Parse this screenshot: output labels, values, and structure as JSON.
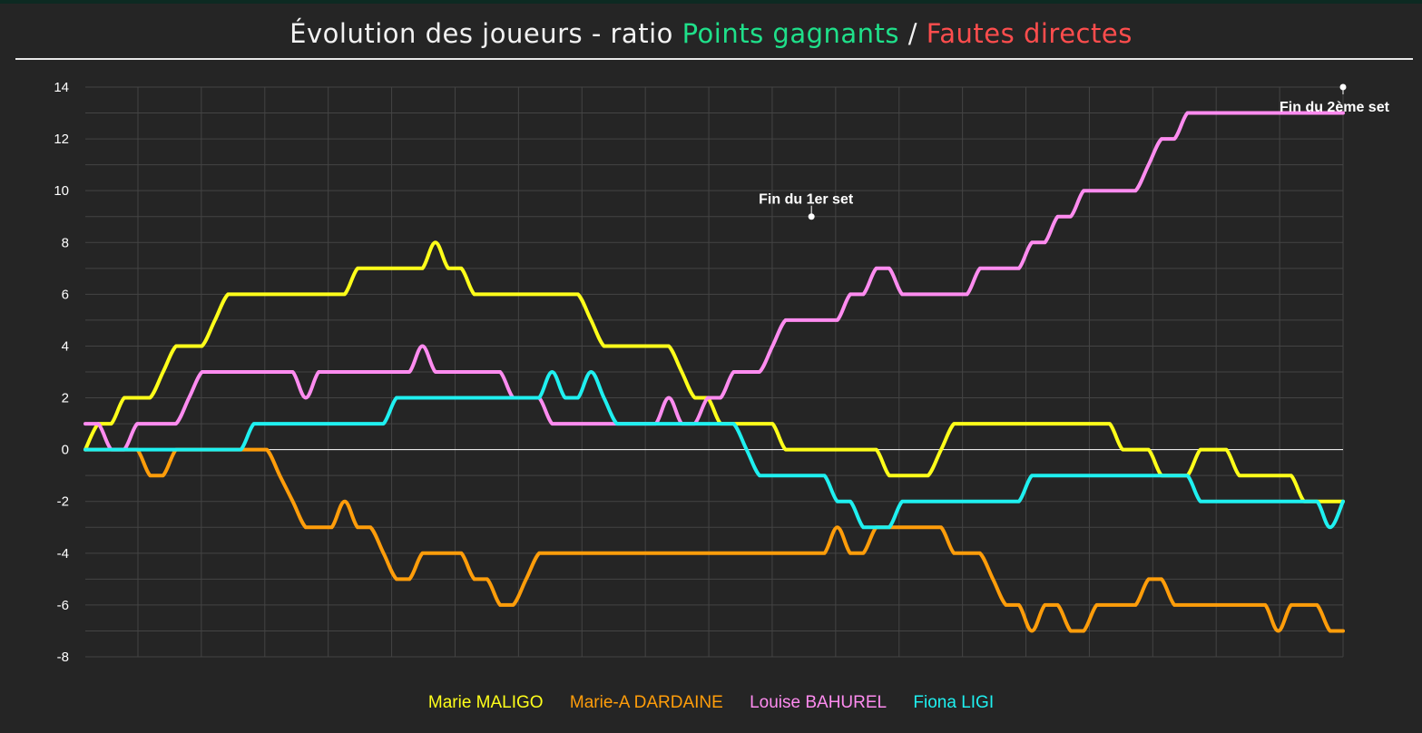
{
  "title": {
    "prefix": "Évolution des joueurs - ratio ",
    "positive": "Points gagnants",
    "separator": " / ",
    "negative": "Fautes directes",
    "positive_color": "#1fe08a",
    "negative_color": "#ff4d4d"
  },
  "chart_data": {
    "type": "line",
    "title": "Évolution des joueurs - ratio Points gagnants / Fautes directes",
    "xlabel": "",
    "ylabel": "",
    "ylim": [
      -8,
      14
    ],
    "xlim": [
      0,
      97
    ],
    "yticks": [
      14,
      12,
      10,
      8,
      6,
      4,
      2,
      0,
      -2,
      -4,
      -6,
      -8
    ],
    "grid": true,
    "legend_position": "bottom",
    "annotations": [
      {
        "text": "Fin du 1er set",
        "x": 56,
        "y": 9
      },
      {
        "text": "Fin du 2ème set",
        "x": 97,
        "y": 14
      }
    ],
    "series": [
      {
        "name": "Marie MALIGO",
        "color": "#ffff1a",
        "x": [
          0,
          1,
          2,
          3,
          4,
          5,
          6,
          7,
          8,
          9,
          10,
          11,
          12,
          13,
          14,
          15,
          16,
          17,
          18,
          19,
          20,
          21,
          22,
          23,
          24,
          25,
          26,
          27,
          28,
          29,
          30,
          31,
          32,
          33,
          34,
          35,
          36,
          37,
          38,
          39,
          40,
          41,
          42,
          43,
          44,
          45,
          46,
          47,
          48,
          49,
          50,
          51,
          52,
          53,
          54,
          55,
          56,
          57,
          58,
          59,
          60,
          61,
          62,
          63,
          64,
          65,
          66,
          67,
          68,
          69,
          70,
          71,
          72,
          73,
          74,
          75,
          76,
          77,
          78,
          79,
          80,
          81,
          82,
          83,
          84,
          85,
          86,
          87,
          88,
          89,
          90,
          91,
          92,
          93,
          94,
          95,
          96,
          97
        ],
        "y": [
          0,
          1,
          1,
          2,
          2,
          2,
          3,
          4,
          4,
          4,
          5,
          6,
          6,
          6,
          6,
          6,
          6,
          6,
          6,
          6,
          6,
          7,
          7,
          7,
          7,
          7,
          7,
          8,
          7,
          7,
          6,
          6,
          6,
          6,
          6,
          6,
          6,
          6,
          6,
          5,
          4,
          4,
          4,
          4,
          4,
          4,
          3,
          2,
          2,
          1,
          1,
          1,
          1,
          1,
          0,
          0,
          0,
          0,
          0,
          0,
          0,
          0,
          -1,
          -1,
          -1,
          -1,
          0,
          1,
          1,
          1,
          1,
          1,
          1,
          1,
          1,
          1,
          1,
          1,
          1,
          1,
          0,
          0,
          0,
          -1,
          -1,
          -1,
          0,
          0,
          0,
          -1,
          -1,
          -1,
          -1,
          -1,
          -2,
          -2,
          -2,
          -2
        ]
      },
      {
        "name": "Marie-A DARDAINE",
        "color": "#ff9d0a",
        "x": [
          0,
          1,
          2,
          3,
          4,
          5,
          6,
          7,
          8,
          9,
          10,
          11,
          12,
          13,
          14,
          15,
          16,
          17,
          18,
          19,
          20,
          21,
          22,
          23,
          24,
          25,
          26,
          27,
          28,
          29,
          30,
          31,
          32,
          33,
          34,
          35,
          36,
          37,
          38,
          39,
          40,
          41,
          42,
          43,
          44,
          45,
          46,
          47,
          48,
          49,
          50,
          51,
          52,
          53,
          54,
          55,
          56,
          57,
          58,
          59,
          60,
          61,
          62,
          63,
          64,
          65,
          66,
          67,
          68,
          69,
          70,
          71,
          72,
          73,
          74,
          75,
          76,
          77,
          78,
          79,
          80,
          81,
          82,
          83,
          84,
          85,
          86,
          87,
          88,
          89,
          90,
          91,
          92,
          93,
          94,
          95,
          96,
          97
        ],
        "y": [
          0,
          0,
          0,
          0,
          0,
          -1,
          -1,
          0,
          0,
          0,
          0,
          0,
          0,
          0,
          0,
          -1,
          -2,
          -3,
          -3,
          -3,
          -2,
          -3,
          -3,
          -4,
          -5,
          -5,
          -4,
          -4,
          -4,
          -4,
          -5,
          -5,
          -6,
          -6,
          -5,
          -4,
          -4,
          -4,
          -4,
          -4,
          -4,
          -4,
          -4,
          -4,
          -4,
          -4,
          -4,
          -4,
          -4,
          -4,
          -4,
          -4,
          -4,
          -4,
          -4,
          -4,
          -4,
          -4,
          -3,
          -4,
          -4,
          -3,
          -3,
          -3,
          -3,
          -3,
          -3,
          -4,
          -4,
          -4,
          -5,
          -6,
          -6,
          -7,
          -6,
          -6,
          -7,
          -7,
          -6,
          -6,
          -6,
          -6,
          -5,
          -5,
          -6,
          -6,
          -6,
          -6,
          -6,
          -6,
          -6,
          -6,
          -7,
          -6,
          -6,
          -6,
          -7,
          -7
        ]
      },
      {
        "name": "Louise BAHUREL",
        "color": "#ff8cf0",
        "x": [
          0,
          1,
          2,
          3,
          4,
          5,
          6,
          7,
          8,
          9,
          10,
          11,
          12,
          13,
          14,
          15,
          16,
          17,
          18,
          19,
          20,
          21,
          22,
          23,
          24,
          25,
          26,
          27,
          28,
          29,
          30,
          31,
          32,
          33,
          34,
          35,
          36,
          37,
          38,
          39,
          40,
          41,
          42,
          43,
          44,
          45,
          46,
          47,
          48,
          49,
          50,
          51,
          52,
          53,
          54,
          55,
          56,
          57,
          58,
          59,
          60,
          61,
          62,
          63,
          64,
          65,
          66,
          67,
          68,
          69,
          70,
          71,
          72,
          73,
          74,
          75,
          76,
          77,
          78,
          79,
          80,
          81,
          82,
          83,
          84,
          85,
          86,
          87,
          88,
          89,
          90,
          91,
          92,
          93,
          94,
          95,
          96,
          97
        ],
        "y": [
          1,
          1,
          0,
          0,
          1,
          1,
          1,
          1,
          2,
          3,
          3,
          3,
          3,
          3,
          3,
          3,
          3,
          2,
          3,
          3,
          3,
          3,
          3,
          3,
          3,
          3,
          4,
          3,
          3,
          3,
          3,
          3,
          3,
          2,
          2,
          2,
          1,
          1,
          1,
          1,
          1,
          1,
          1,
          1,
          1,
          2,
          1,
          1,
          2,
          2,
          3,
          3,
          3,
          4,
          5,
          5,
          5,
          5,
          5,
          6,
          6,
          7,
          7,
          6,
          6,
          6,
          6,
          6,
          6,
          7,
          7,
          7,
          7,
          8,
          8,
          9,
          9,
          10,
          10,
          10,
          10,
          10,
          11,
          12,
          12,
          13,
          13,
          13,
          13,
          13,
          13,
          13,
          13,
          13,
          13,
          13,
          13,
          13
        ]
      },
      {
        "name": "Fiona LIGI",
        "color": "#1ff0f0",
        "x": [
          0,
          1,
          2,
          3,
          4,
          5,
          6,
          7,
          8,
          9,
          10,
          11,
          12,
          13,
          14,
          15,
          16,
          17,
          18,
          19,
          20,
          21,
          22,
          23,
          24,
          25,
          26,
          27,
          28,
          29,
          30,
          31,
          32,
          33,
          34,
          35,
          36,
          37,
          38,
          39,
          40,
          41,
          42,
          43,
          44,
          45,
          46,
          47,
          48,
          49,
          50,
          51,
          52,
          53,
          54,
          55,
          56,
          57,
          58,
          59,
          60,
          61,
          62,
          63,
          64,
          65,
          66,
          67,
          68,
          69,
          70,
          71,
          72,
          73,
          74,
          75,
          76,
          77,
          78,
          79,
          80,
          81,
          82,
          83,
          84,
          85,
          86,
          87,
          88,
          89,
          90,
          91,
          92,
          93,
          94,
          95,
          96,
          97
        ],
        "y": [
          0,
          0,
          0,
          0,
          0,
          0,
          0,
          0,
          0,
          0,
          0,
          0,
          0,
          1,
          1,
          1,
          1,
          1,
          1,
          1,
          1,
          1,
          1,
          1,
          2,
          2,
          2,
          2,
          2,
          2,
          2,
          2,
          2,
          2,
          2,
          2,
          3,
          2,
          2,
          3,
          2,
          1,
          1,
          1,
          1,
          1,
          1,
          1,
          1,
          1,
          1,
          0,
          -1,
          -1,
          -1,
          -1,
          -1,
          -1,
          -2,
          -2,
          -3,
          -3,
          -3,
          -2,
          -2,
          -2,
          -2,
          -2,
          -2,
          -2,
          -2,
          -2,
          -2,
          -1,
          -1,
          -1,
          -1,
          -1,
          -1,
          -1,
          -1,
          -1,
          -1,
          -1,
          -1,
          -1,
          -2,
          -2,
          -2,
          -2,
          -2,
          -2,
          -2,
          -2,
          -2,
          -2,
          -3,
          -2
        ]
      }
    ]
  },
  "legend": [
    "Marie MALIGO",
    "Marie-A DARDAINE",
    "Louise BAHUREL",
    "Fiona LIGI"
  ],
  "colors": {
    "background": "#252525",
    "grid": "#444444",
    "zero_line": "#ffffff"
  }
}
